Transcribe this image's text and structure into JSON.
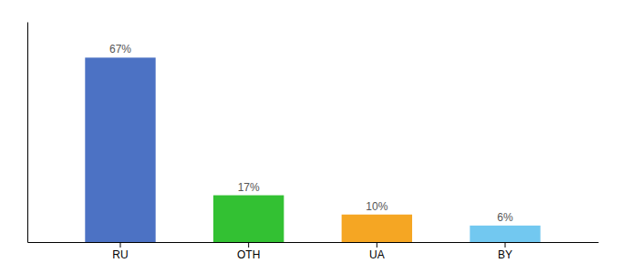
{
  "chart_data": {
    "type": "bar",
    "categories": [
      "RU",
      "OTH",
      "UA",
      "BY"
    ],
    "values": [
      67,
      17,
      10,
      6
    ],
    "value_labels": [
      "67%",
      "17%",
      "10%",
      "6%"
    ],
    "colors": [
      "#4C72C4",
      "#33C133",
      "#F5A623",
      "#72C8F0"
    ],
    "ylim": [
      0,
      80
    ],
    "data_labels": true,
    "tick_labels": "x",
    "grid": false
  }
}
